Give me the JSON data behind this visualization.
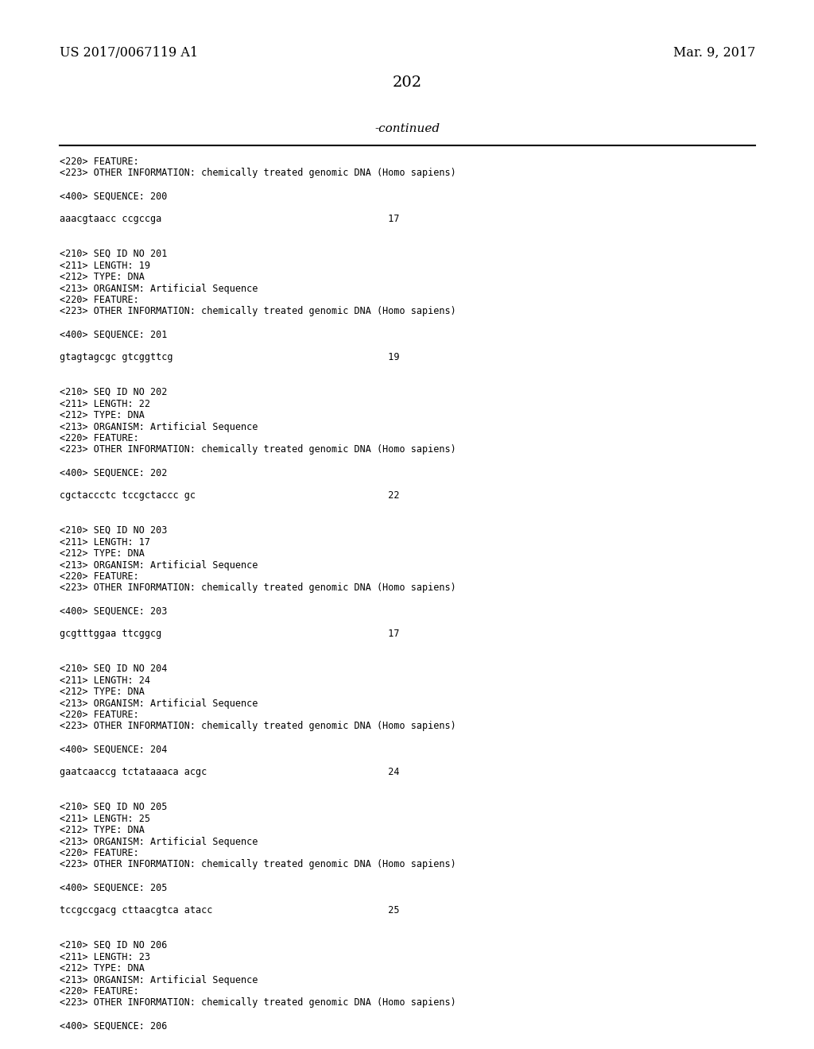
{
  "background_color": "#ffffff",
  "header_left": "US 2017/0067119 A1",
  "header_right": "Mar. 9, 2017",
  "page_number": "202",
  "continued_text": "-continued",
  "content": [
    "<220> FEATURE:",
    "<223> OTHER INFORMATION: chemically treated genomic DNA (Homo sapiens)",
    "",
    "<400> SEQUENCE: 200",
    "",
    "aaacgtaacc ccgccga                                        17",
    "",
    "",
    "<210> SEQ ID NO 201",
    "<211> LENGTH: 19",
    "<212> TYPE: DNA",
    "<213> ORGANISM: Artificial Sequence",
    "<220> FEATURE:",
    "<223> OTHER INFORMATION: chemically treated genomic DNA (Homo sapiens)",
    "",
    "<400> SEQUENCE: 201",
    "",
    "gtagtagcgc gtcggttcg                                      19",
    "",
    "",
    "<210> SEQ ID NO 202",
    "<211> LENGTH: 22",
    "<212> TYPE: DNA",
    "<213> ORGANISM: Artificial Sequence",
    "<220> FEATURE:",
    "<223> OTHER INFORMATION: chemically treated genomic DNA (Homo sapiens)",
    "",
    "<400> SEQUENCE: 202",
    "",
    "cgctaccctc tccgctaccc gc                                  22",
    "",
    "",
    "<210> SEQ ID NO 203",
    "<211> LENGTH: 17",
    "<212> TYPE: DNA",
    "<213> ORGANISM: Artificial Sequence",
    "<220> FEATURE:",
    "<223> OTHER INFORMATION: chemically treated genomic DNA (Homo sapiens)",
    "",
    "<400> SEQUENCE: 203",
    "",
    "gcgtttggaa ttcggcg                                        17",
    "",
    "",
    "<210> SEQ ID NO 204",
    "<211> LENGTH: 24",
    "<212> TYPE: DNA",
    "<213> ORGANISM: Artificial Sequence",
    "<220> FEATURE:",
    "<223> OTHER INFORMATION: chemically treated genomic DNA (Homo sapiens)",
    "",
    "<400> SEQUENCE: 204",
    "",
    "gaatcaaccg tctataaaca acgc                                24",
    "",
    "",
    "<210> SEQ ID NO 205",
    "<211> LENGTH: 25",
    "<212> TYPE: DNA",
    "<213> ORGANISM: Artificial Sequence",
    "<220> FEATURE:",
    "<223> OTHER INFORMATION: chemically treated genomic DNA (Homo sapiens)",
    "",
    "<400> SEQUENCE: 205",
    "",
    "tccgccgacg cttaacgtca atacc                               25",
    "",
    "",
    "<210> SEQ ID NO 206",
    "<211> LENGTH: 23",
    "<212> TYPE: DNA",
    "<213> ORGANISM: Artificial Sequence",
    "<220> FEATURE:",
    "<223> OTHER INFORMATION: chemically treated genomic DNA (Homo sapiens)",
    "",
    "<400> SEQUENCE: 206"
  ],
  "font_size_header": 11.5,
  "font_size_page": 14,
  "font_size_continued": 11,
  "font_size_content": 8.5
}
